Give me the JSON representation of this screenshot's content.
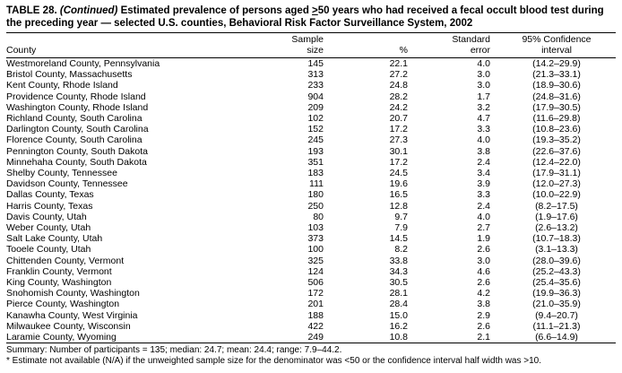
{
  "title": {
    "label": "TABLE 28.",
    "continued": " (Continued)",
    "body_pre": " Estimated prevalence of persons aged ",
    "geq": ">",
    "body_post": "50 years who had received a fecal occult blood test during the preceding year — selected U.S. counties, Behavioral Risk Factor Surveillance System, 2002"
  },
  "columns": {
    "county": "County",
    "sample_line1": "Sample",
    "sample_line2": "size",
    "percent": "%",
    "se_line1": "Standard",
    "se_line2": "error",
    "ci_line1": "95% Confidence",
    "ci_line2": "interval"
  },
  "rows": [
    {
      "county": "Westmoreland County, Pennsylvania",
      "n": "145",
      "pct": "22.1",
      "se": "4.0",
      "ci": "(14.2–29.9)"
    },
    {
      "county": "Bristol County, Massachusetts",
      "n": "313",
      "pct": "27.2",
      "se": "3.0",
      "ci": "(21.3–33.1)"
    },
    {
      "county": "Kent County, Rhode Island",
      "n": "233",
      "pct": "24.8",
      "se": "3.0",
      "ci": "(18.9–30.6)"
    },
    {
      "county": "Providence County, Rhode Island",
      "n": "904",
      "pct": "28.2",
      "se": "1.7",
      "ci": "(24.8–31.6)"
    },
    {
      "county": "Washington County, Rhode Island",
      "n": "209",
      "pct": "24.2",
      "se": "3.2",
      "ci": "(17.9–30.5)"
    },
    {
      "county": "Richland County, South Carolina",
      "n": "102",
      "pct": "20.7",
      "se": "4.7",
      "ci": "(11.6–29.8)"
    },
    {
      "county": "Darlington County, South Carolina",
      "n": "152",
      "pct": "17.2",
      "se": "3.3",
      "ci": "(10.8–23.6)"
    },
    {
      "county": "Florence County, South Carolina",
      "n": "245",
      "pct": "27.3",
      "se": "4.0",
      "ci": "(19.3–35.2)"
    },
    {
      "county": "Pennington County, South Dakota",
      "n": "193",
      "pct": "30.1",
      "se": "3.8",
      "ci": "(22.6–37.6)"
    },
    {
      "county": "Minnehaha County, South Dakota",
      "n": "351",
      "pct": "17.2",
      "se": "2.4",
      "ci": "(12.4–22.0)"
    },
    {
      "county": "Shelby County, Tennessee",
      "n": "183",
      "pct": "24.5",
      "se": "3.4",
      "ci": "(17.9–31.1)"
    },
    {
      "county": "Davidson County, Tennessee",
      "n": "111",
      "pct": "19.6",
      "se": "3.9",
      "ci": "(12.0–27.3)"
    },
    {
      "county": "Dallas County, Texas",
      "n": "180",
      "pct": "16.5",
      "se": "3.3",
      "ci": "(10.0–22.9)"
    },
    {
      "county": "Harris County, Texas",
      "n": "250",
      "pct": "12.8",
      "se": "2.4",
      "ci": "(8.2–17.5)"
    },
    {
      "county": "Davis County, Utah",
      "n": "80",
      "pct": "9.7",
      "se": "4.0",
      "ci": "(1.9–17.6)"
    },
    {
      "county": "Weber County, Utah",
      "n": "103",
      "pct": "7.9",
      "se": "2.7",
      "ci": "(2.6–13.2)"
    },
    {
      "county": "Salt Lake County, Utah",
      "n": "373",
      "pct": "14.5",
      "se": "1.9",
      "ci": "(10.7–18.3)"
    },
    {
      "county": "Tooele County, Utah",
      "n": "100",
      "pct": "8.2",
      "se": "2.6",
      "ci": "(3.1–13.3)"
    },
    {
      "county": "Chittenden County, Vermont",
      "n": "325",
      "pct": "33.8",
      "se": "3.0",
      "ci": "(28.0–39.6)"
    },
    {
      "county": "Franklin County, Vermont",
      "n": "124",
      "pct": "34.3",
      "se": "4.6",
      "ci": "(25.2–43.3)"
    },
    {
      "county": "King County, Washington",
      "n": "506",
      "pct": "30.5",
      "se": "2.6",
      "ci": "(25.4–35.6)"
    },
    {
      "county": "Snohomish County, Washington",
      "n": "172",
      "pct": "28.1",
      "se": "4.2",
      "ci": "(19.9–36.3)"
    },
    {
      "county": "Pierce County, Washington",
      "n": "201",
      "pct": "28.4",
      "se": "3.8",
      "ci": "(21.0–35.9)"
    },
    {
      "county": "Kanawha County, West Virginia",
      "n": "188",
      "pct": "15.0",
      "se": "2.9",
      "ci": "(9.4–20.7)"
    },
    {
      "county": "Milwaukee County, Wisconsin",
      "n": "422",
      "pct": "16.2",
      "se": "2.6",
      "ci": "(11.1–21.3)"
    },
    {
      "county": "Laramie County, Wyoming",
      "n": "249",
      "pct": "10.8",
      "se": "2.1",
      "ci": "(6.6–14.9)"
    }
  ],
  "footnotes": {
    "summary": "Summary: Number of participants = 135; median: 24.7; mean: 24.4; range: 7.9–44.2.",
    "note": "* Estimate not available (N/A) if the unweighted sample size for the denominator was <50 or the confidence interval half width was >10."
  }
}
